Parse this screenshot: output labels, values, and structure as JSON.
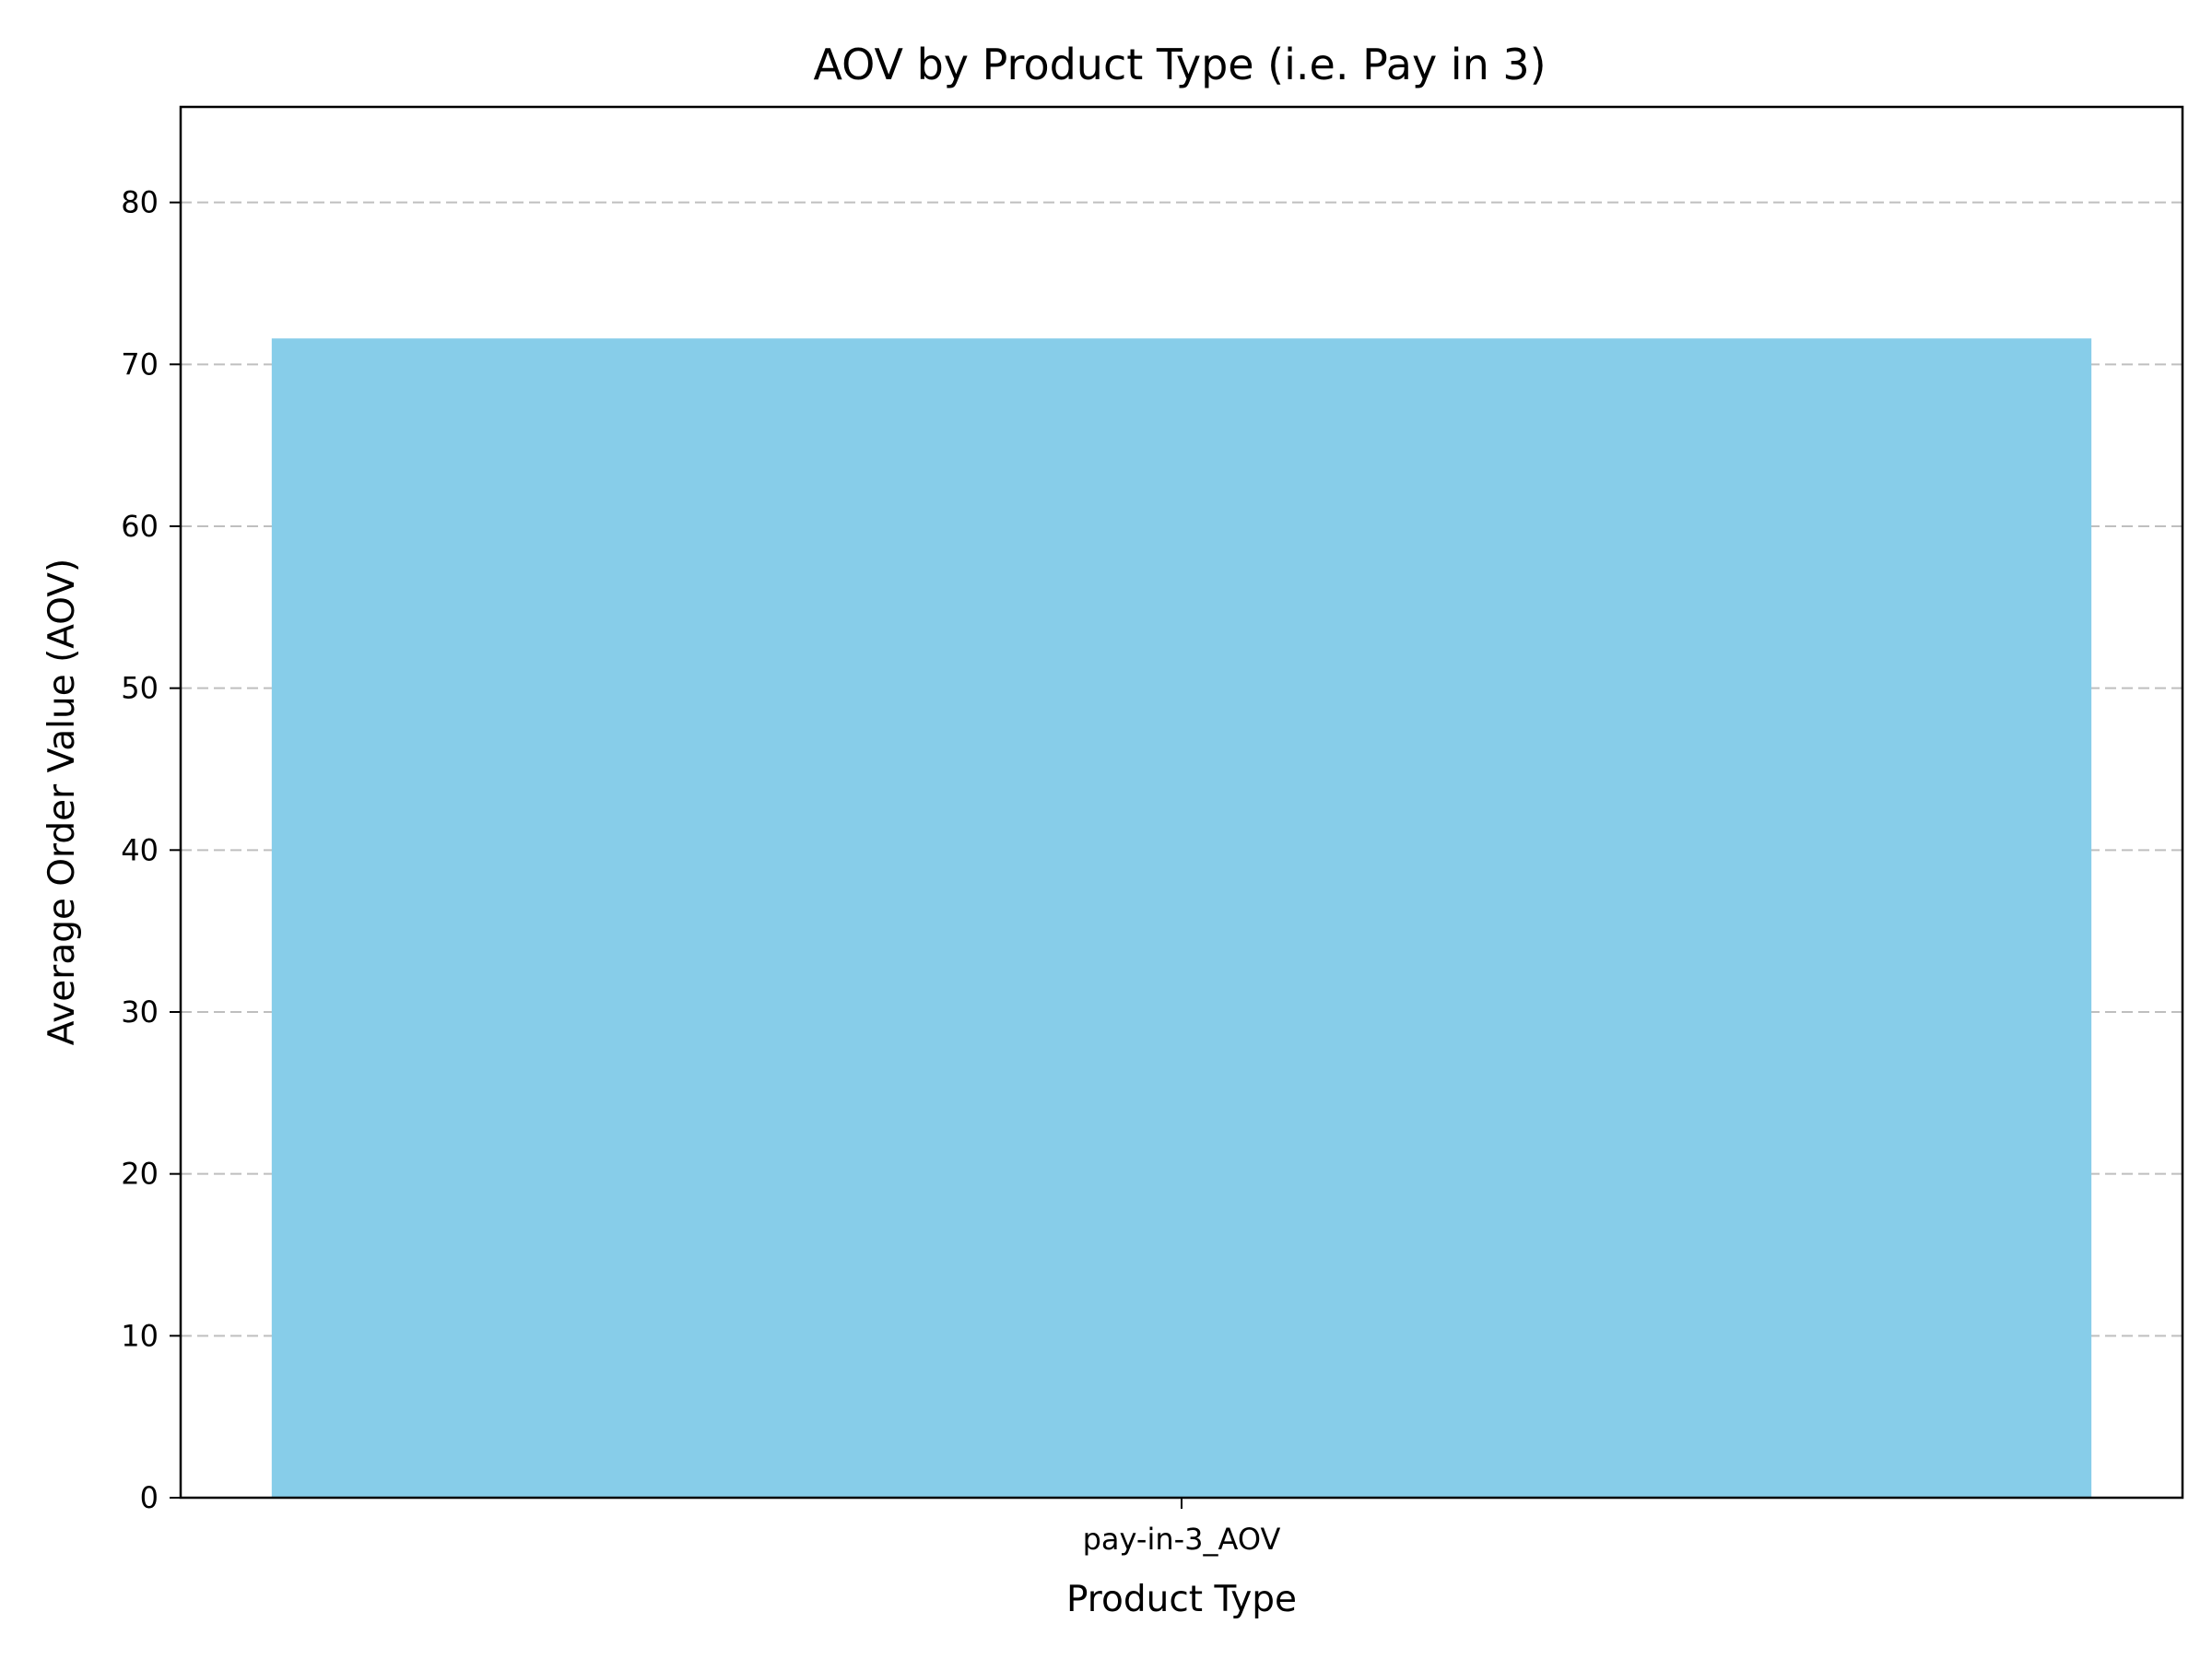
{
  "chart_data": {
    "type": "bar",
    "title": "AOV by Product Type (i.e. Pay in 3)",
    "xlabel": "Product Type",
    "ylabel": "Average Order Value (AOV)",
    "categories": [
      "pay-in-3_AOV"
    ],
    "values": [
      71.6
    ],
    "ylim": [
      0,
      85.9
    ],
    "yticks": [
      0,
      10,
      20,
      30,
      40,
      50,
      60,
      70,
      80
    ],
    "grid": {
      "axis": "y",
      "style": "dashed"
    },
    "legend": "none",
    "colors": {
      "bar": "#87CDE9"
    }
  }
}
